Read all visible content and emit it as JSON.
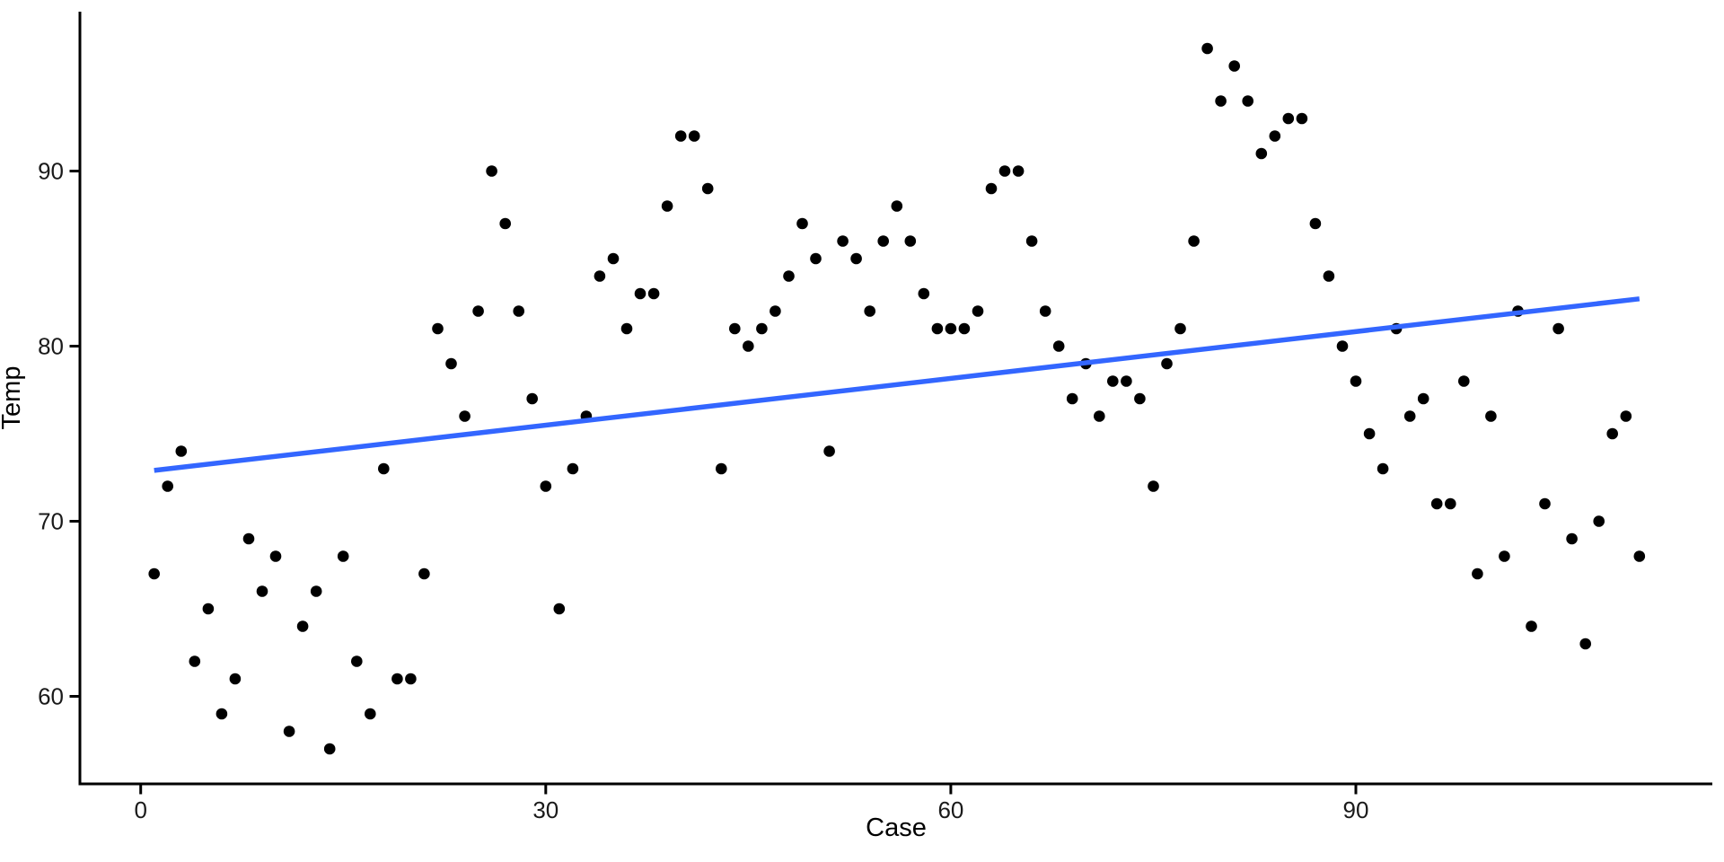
{
  "chart_data": {
    "type": "scatter",
    "title": "",
    "xlabel": "Case",
    "ylabel": "Temp",
    "x_ticks": [
      0,
      30,
      60,
      90
    ],
    "y_ticks": [
      60,
      70,
      80,
      90
    ],
    "xlim": [
      -4.5,
      116.4
    ],
    "ylim": [
      55.0,
      99.1
    ],
    "grid": "off",
    "legend": "none",
    "x_start": 1,
    "x_step": 1,
    "n_points": 111,
    "y_values": [
      67,
      72,
      74,
      62,
      65,
      59,
      61,
      69,
      66,
      68,
      58,
      64,
      66,
      57,
      68,
      62,
      59,
      73,
      61,
      61,
      67,
      81,
      79,
      76,
      82,
      90,
      87,
      82,
      77,
      72,
      65,
      73,
      76,
      84,
      85,
      81,
      83,
      83,
      88,
      92,
      92,
      89,
      73,
      81,
      80,
      81,
      82,
      84,
      87,
      85,
      74,
      86,
      85,
      82,
      86,
      88,
      86,
      83,
      81,
      81,
      81,
      82,
      89,
      90,
      90,
      86,
      82,
      80,
      77,
      79,
      76,
      78,
      78,
      77,
      72,
      79,
      81,
      86,
      97,
      94,
      96,
      94,
      91,
      92,
      93,
      93,
      87,
      84,
      80,
      78,
      75,
      73,
      81,
      76,
      77,
      71,
      71,
      78,
      67,
      76,
      68,
      82,
      64,
      71,
      81,
      69,
      63,
      70,
      75,
      76,
      68
    ],
    "regression_line": {
      "x1": 1,
      "y1": 72.9,
      "x2": 111,
      "y2": 82.7
    },
    "colors": {
      "point": "#000000",
      "line": "#3366FF",
      "axis": "#000000",
      "tick_text": "#1a1a1a",
      "title_text": "#000000",
      "background": "#FFFFFF"
    },
    "marker_radius": 6.3,
    "line_width": 5.5
  }
}
